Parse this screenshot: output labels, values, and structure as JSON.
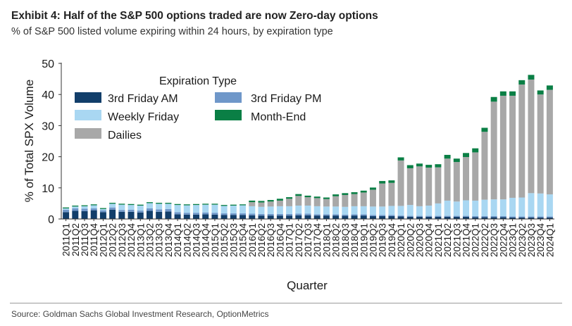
{
  "header": {
    "title": "Exhibit 4: Half of the S&P 500 options traded are now Zero-day options",
    "subtitle": "% of S&P 500 listed volume expiring within 24 hours, by expiration type"
  },
  "footer": {
    "source": "Source: Goldman Sachs Global Investment Research, OptionMetrics"
  },
  "colors": {
    "3rd Friday AM": "#123e6a",
    "3rd Friday PM": "#6f97c9",
    "Weekly Friday": "#a9d7f2",
    "Month-End": "#0a7f45",
    "Dailies": "#a8a8a8"
  },
  "chart_data": {
    "type": "bar",
    "stacked": true,
    "xlabel": "Quarter",
    "ylabel": "% of Total SPX Volume",
    "ylim": [
      0,
      50
    ],
    "yticks": [
      0,
      10,
      20,
      30,
      40,
      50
    ],
    "grid": false,
    "legend": {
      "title": "Expiration Type",
      "position": "top-left",
      "entries": [
        "3rd Friday AM",
        "3rd Friday PM",
        "Weekly Friday",
        "Month-End",
        "Dailies"
      ]
    },
    "categories": [
      "2011Q1",
      "2011Q2",
      "2011Q3",
      "2011Q4",
      "2012Q1",
      "2012Q2",
      "2012Q3",
      "2012Q4",
      "2013Q1",
      "2013Q2",
      "2013Q3",
      "2013Q4",
      "2014Q1",
      "2014Q2",
      "2014Q3",
      "2014Q4",
      "2015Q1",
      "2015Q2",
      "2015Q3",
      "2015Q4",
      "2016Q1",
      "2016Q2",
      "2016Q3",
      "2016Q4",
      "2017Q1",
      "2017Q2",
      "2017Q3",
      "2017Q4",
      "2018Q1",
      "2018Q2",
      "2018Q3",
      "2018Q4",
      "2019Q1",
      "2019Q2",
      "2019Q3",
      "2019Q4",
      "2020Q1",
      "2020Q2",
      "2020Q3",
      "2020Q4",
      "2021Q1",
      "2021Q2",
      "2021Q3",
      "2021Q4",
      "2022Q1",
      "2022Q2",
      "2022Q3",
      "2022Q4",
      "2023Q1",
      "2023Q2",
      "2023Q3",
      "2023Q4",
      "2024Q1"
    ],
    "tick_labels": [
      "2011Q1",
      "2011Q2",
      "2011Q3",
      "2011Q4",
      "2012Q1",
      "2012Q2",
      "2012Q3",
      "2012Q4",
      "2013Q1",
      "2013Q2",
      "2013Q3",
      "2013Q4",
      "2014Q1",
      "2014Q2",
      "2014Q3",
      "2014Q4",
      "2015Q1",
      "2015Q2",
      "2015Q3",
      "2015Q4",
      "2016Q1",
      "2016Q2",
      "2016Q3",
      "2016Q4",
      "2017Q1",
      "2017Q2",
      "2017Q3",
      "2017Q4",
      "2018Q1",
      "2018Q2",
      "2018Q3",
      "2018Q4",
      "2019Q1",
      "2019Q2",
      "2019Q3",
      "2019Q4",
      "2020Q1",
      "2020Q2",
      "2020Q3",
      "2020Q4",
      "2021Q1",
      "2021Q2",
      "2021Q3",
      "2021Q4",
      "2022Q1",
      "2022Q2",
      "2022Q3",
      "2022Q4",
      "2023Q1",
      "2023Q2",
      "2023Q3",
      "2023Q4",
      "2024Q1"
    ],
    "series": [
      {
        "name": "3rd Friday AM",
        "values": [
          2.2,
          2.6,
          2.5,
          2.8,
          2.2,
          3.0,
          2.3,
          2.3,
          2.1,
          2.6,
          2.3,
          2.4,
          1.5,
          1.4,
          1.4,
          1.5,
          1.4,
          1.3,
          1.3,
          1.3,
          1.2,
          1.1,
          1.1,
          1.1,
          1.1,
          1.2,
          1.2,
          1.1,
          1.1,
          1.1,
          1.0,
          1.1,
          1.1,
          0.9,
          0.9,
          0.9,
          0.8,
          0.7,
          0.7,
          0.7,
          0.7,
          0.7,
          0.7,
          0.7,
          0.6,
          0.6,
          0.6,
          0.6,
          0.5,
          0.5,
          0.5,
          0.5,
          0.5
        ]
      },
      {
        "name": "3rd Friday PM",
        "values": [
          0.8,
          0.8,
          0.8,
          0.6,
          0.6,
          0.7,
          0.6,
          0.7,
          0.6,
          0.8,
          0.8,
          0.8,
          0.7,
          0.6,
          0.6,
          0.6,
          0.6,
          0.5,
          0.5,
          0.5,
          0.5,
          0.5,
          0.5,
          0.5,
          0.5,
          0.5,
          0.5,
          0.4,
          0.4,
          0.4,
          0.4,
          0.4,
          0.4,
          0.4,
          0.4,
          0.4,
          0.3,
          0.3,
          0.3,
          0.3,
          0.3,
          0.3,
          0.3,
          0.3,
          0.3,
          0.3,
          0.3,
          0.3,
          0.3,
          0.3,
          0.3,
          0.3,
          0.3
        ]
      },
      {
        "name": "Weekly Friday",
        "values": [
          0.4,
          0.6,
          0.8,
          1.0,
          0.4,
          1.2,
          1.7,
          1.5,
          1.6,
          1.7,
          1.8,
          1.7,
          2.3,
          2.4,
          2.5,
          2.5,
          2.6,
          2.4,
          2.5,
          2.6,
          2.4,
          2.3,
          2.4,
          2.5,
          2.5,
          2.6,
          2.6,
          2.6,
          2.5,
          2.5,
          2.5,
          2.6,
          2.6,
          2.7,
          2.7,
          2.9,
          3.1,
          3.5,
          3.1,
          3.3,
          4.0,
          4.9,
          4.6,
          5.0,
          5.0,
          5.3,
          5.4,
          5.4,
          6.0,
          6.1,
          7.5,
          7.4,
          7.1
        ]
      },
      {
        "name": "Dailies",
        "values": [
          0.0,
          0.0,
          0.0,
          0.0,
          0.0,
          0.0,
          0.0,
          0.0,
          0.0,
          0.0,
          0.0,
          0.0,
          0.0,
          0.0,
          0.0,
          0.0,
          0.0,
          0.0,
          0.0,
          0.0,
          1.3,
          1.4,
          1.6,
          1.8,
          2.4,
          3.1,
          2.7,
          2.6,
          2.4,
          3.3,
          3.8,
          3.9,
          4.4,
          5.4,
          7.4,
          7.4,
          14.6,
          11.8,
          12.8,
          12.2,
          11.6,
          13.5,
          12.7,
          13.9,
          15.5,
          21.8,
          31.4,
          33.3,
          32.8,
          36.3,
          36.5,
          31.8,
          33.6
        ]
      },
      {
        "name": "Month-End",
        "values": [
          0.3,
          0.3,
          0.3,
          0.3,
          0.3,
          0.3,
          0.3,
          0.3,
          0.3,
          0.3,
          0.3,
          0.3,
          0.3,
          0.3,
          0.3,
          0.3,
          0.3,
          0.3,
          0.3,
          0.3,
          0.5,
          0.5,
          0.5,
          0.6,
          0.5,
          0.6,
          0.5,
          0.5,
          0.5,
          0.6,
          0.6,
          0.6,
          0.6,
          0.7,
          0.8,
          0.8,
          1.0,
          1.0,
          0.9,
          0.9,
          1.0,
          1.2,
          1.1,
          1.3,
          1.3,
          1.3,
          1.5,
          1.4,
          1.4,
          1.4,
          1.5,
          1.3,
          1.4
        ]
      }
    ]
  }
}
